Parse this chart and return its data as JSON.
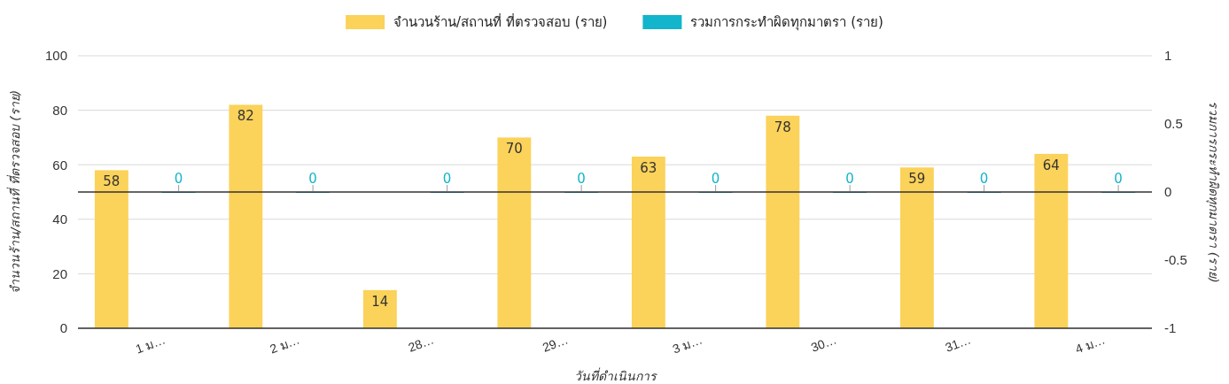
{
  "chart_data": {
    "type": "bar",
    "xlabel": "วันที่ดำเนินการ",
    "ylabel": "จำนวนร้าน/สถานที่ ที่ตรวจสอบ (ราย)",
    "y2label": "รวมการกระทำผิดทุกมาตรา (ราย)",
    "categories": [
      "1 ม…",
      "2 ม…",
      "28…",
      "29…",
      "3 ม…",
      "30…",
      "31…",
      "4 ม…"
    ],
    "series": [
      {
        "name": "จำนวนร้าน/สถานที่ ที่ตรวจสอบ (ราย)",
        "color": "#fbd25a",
        "values": [
          58,
          82,
          14,
          70,
          63,
          78,
          59,
          64
        ]
      },
      {
        "name": "รวมการกระทำผิดทุกมาตรา (ราย)",
        "color": "#12b5cb",
        "axis": "y2",
        "values": [
          0,
          0,
          0,
          0,
          0,
          0,
          0,
          0
        ]
      }
    ],
    "ylim": [
      0,
      100
    ],
    "yticks": [
      0,
      20,
      40,
      60,
      80,
      100
    ],
    "y2lim": [
      -1,
      1
    ],
    "y2ticks": [
      -1,
      -0.5,
      0,
      0.5,
      1
    ],
    "ref_lines": [
      {
        "axis": "y2",
        "value": 0,
        "color": "#333333"
      }
    ],
    "grid": true,
    "legend": "top",
    "data_labels": true
  }
}
